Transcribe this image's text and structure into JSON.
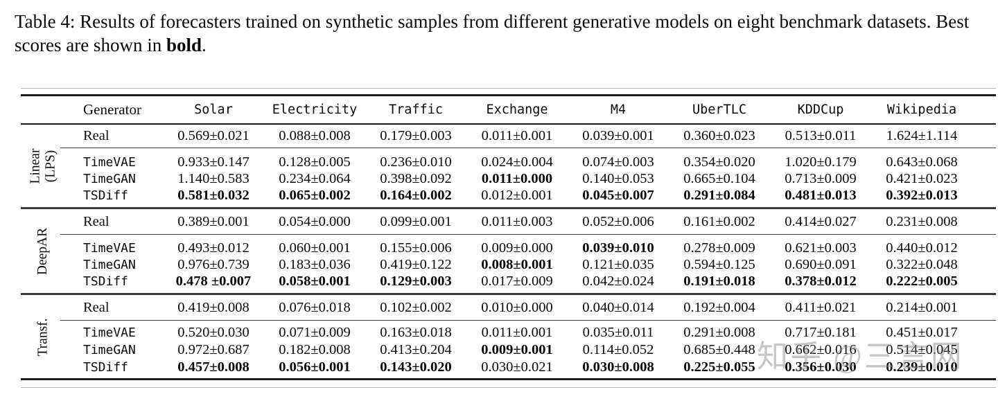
{
  "caption": {
    "prefix": "Table 4: Results of forecasters trained on synthetic samples from different generative models on eight benchmark datasets. Best scores are shown in ",
    "bold_word": "bold",
    "suffix": "."
  },
  "table": {
    "generator_header": "Generator",
    "dataset_headers": [
      "Solar",
      "Electricity",
      "Traffic",
      "Exchange",
      "M4",
      "UberTLC",
      "KDDCup",
      "Wikipedia"
    ],
    "groups": [
      {
        "label_lines": [
          "Linear",
          "(LPS)"
        ],
        "rows": [
          {
            "generator": "Real",
            "mono": false,
            "values": [
              "0.569±0.021",
              "0.088±0.008",
              "0.179±0.003",
              "0.011±0.001",
              "0.039±0.001",
              "0.360±0.023",
              "0.513±0.011",
              "1.624±1.114"
            ],
            "bold": [
              false,
              false,
              false,
              false,
              false,
              false,
              false,
              false
            ]
          },
          {
            "generator": "TimeVAE",
            "mono": true,
            "values": [
              "0.933±0.147",
              "0.128±0.005",
              "0.236±0.010",
              "0.024±0.004",
              "0.074±0.003",
              "0.354±0.020",
              "1.020±0.179",
              "0.643±0.068"
            ],
            "bold": [
              false,
              false,
              false,
              false,
              false,
              false,
              false,
              false
            ]
          },
          {
            "generator": "TimeGAN",
            "mono": true,
            "values": [
              "1.140±0.583",
              "0.234±0.064",
              "0.398±0.092",
              "0.011±0.000",
              "0.140±0.053",
              "0.665±0.104",
              "0.713±0.009",
              "0.421±0.023"
            ],
            "bold": [
              false,
              false,
              false,
              true,
              false,
              false,
              false,
              false
            ]
          },
          {
            "generator": "TSDiff",
            "mono": true,
            "values": [
              "0.581±0.032",
              "0.065±0.002",
              "0.164±0.002",
              "0.012±0.001",
              "0.045±0.007",
              "0.291±0.084",
              "0.481±0.013",
              "0.392±0.013"
            ],
            "bold": [
              true,
              true,
              true,
              false,
              true,
              true,
              true,
              true
            ]
          }
        ]
      },
      {
        "label_lines": [
          "DeepAR"
        ],
        "rows": [
          {
            "generator": "Real",
            "mono": false,
            "values": [
              "0.389±0.001",
              "0.054±0.000",
              "0.099±0.001",
              "0.011±0.003",
              "0.052±0.006",
              "0.161±0.002",
              "0.414±0.027",
              "0.231±0.008"
            ],
            "bold": [
              false,
              false,
              false,
              false,
              false,
              false,
              false,
              false
            ]
          },
          {
            "generator": "TimeVAE",
            "mono": true,
            "values": [
              "0.493±0.012",
              "0.060±0.001",
              "0.155±0.006",
              "0.009±0.000",
              "0.039±0.010",
              "0.278±0.009",
              "0.621±0.003",
              "0.440±0.012"
            ],
            "bold": [
              false,
              false,
              false,
              false,
              true,
              false,
              false,
              false
            ]
          },
          {
            "generator": "TimeGAN",
            "mono": true,
            "values": [
              "0.976±0.739",
              "0.183±0.036",
              "0.419±0.122",
              "0.008±0.001",
              "0.121±0.035",
              "0.594±0.125",
              "0.690±0.091",
              "0.322±0.048"
            ],
            "bold": [
              false,
              false,
              false,
              true,
              false,
              false,
              false,
              false
            ]
          },
          {
            "generator": "TSDiff",
            "mono": true,
            "values": [
              "0.478 ±0.007",
              "0.058±0.001",
              "0.129±0.003",
              "0.017±0.009",
              "0.042±0.024",
              "0.191±0.018",
              "0.378±0.012",
              "0.222±0.005"
            ],
            "bold": [
              true,
              true,
              true,
              false,
              false,
              true,
              true,
              true
            ]
          }
        ]
      },
      {
        "label_lines": [
          "Transf."
        ],
        "rows": [
          {
            "generator": "Real",
            "mono": false,
            "values": [
              "0.419±0.008",
              "0.076±0.018",
              "0.102±0.002",
              "0.010±0.000",
              "0.040±0.014",
              "0.192±0.004",
              "0.411±0.021",
              "0.214±0.001"
            ],
            "bold": [
              false,
              false,
              false,
              false,
              false,
              false,
              false,
              false
            ]
          },
          {
            "generator": "TimeVAE",
            "mono": true,
            "values": [
              "0.520±0.030",
              "0.071±0.009",
              "0.163±0.018",
              "0.011±0.001",
              "0.035±0.011",
              "0.291±0.008",
              "0.717±0.181",
              "0.451±0.017"
            ],
            "bold": [
              false,
              false,
              false,
              false,
              false,
              false,
              false,
              false
            ]
          },
          {
            "generator": "TimeGAN",
            "mono": true,
            "values": [
              "0.972±0.687",
              "0.182±0.008",
              "0.413±0.204",
              "0.009±0.001",
              "0.114±0.052",
              "0.685±0.448",
              "0.662±0.016",
              "0.514±0.045"
            ],
            "bold": [
              false,
              false,
              false,
              true,
              false,
              false,
              false,
              false
            ]
          },
          {
            "generator": "TSDiff",
            "mono": true,
            "values": [
              "0.457±0.008",
              "0.056±0.001",
              "0.143±0.020",
              "0.030±0.021",
              "0.030±0.008",
              "0.225±0.055",
              "0.356±0.030",
              "0.239±0.010"
            ],
            "bold": [
              true,
              true,
              true,
              false,
              true,
              true,
              true,
              true
            ]
          }
        ]
      }
    ]
  },
  "watermark": {
    "text": "知乎 @三言网"
  },
  "colors": {
    "rule_dark": "#1a1a1a",
    "rule_mid": "#3a3a3a",
    "rule_light": "#b5b5b5",
    "watermark_gray": "#8f8f8f"
  }
}
